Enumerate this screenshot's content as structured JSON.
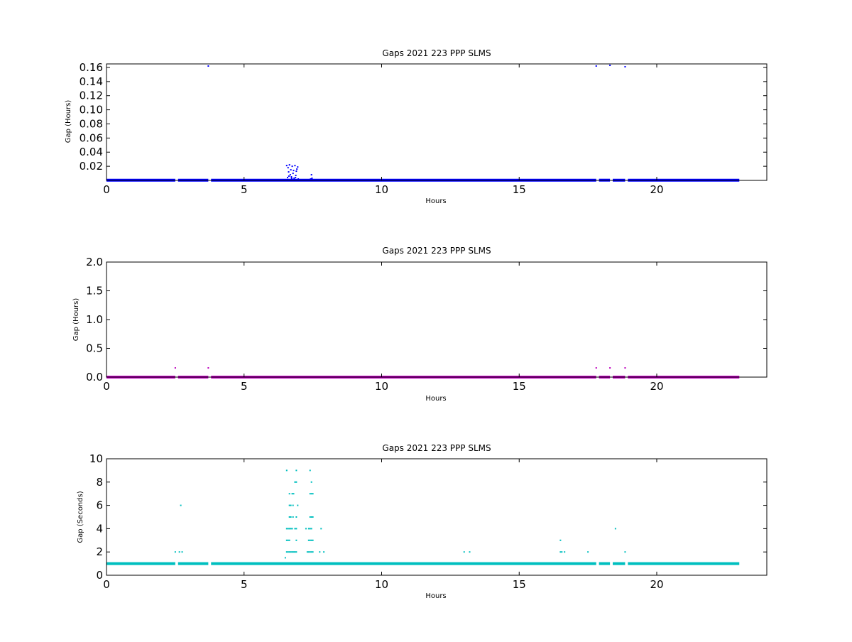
{
  "chart_data": [
    {
      "type": "scatter",
      "title": "Gaps 2021 223 PPP  SLMS",
      "xlabel": "Hours",
      "ylabel": "Gap (Hours)",
      "xlim": [
        0,
        24
      ],
      "ylim": [
        0,
        0.165
      ],
      "xticks": [
        0,
        5,
        10,
        15,
        20
      ],
      "xtick_labels": [
        "0",
        "5",
        "10",
        "15",
        "20"
      ],
      "yticks": [
        0.02,
        0.04,
        0.06,
        0.08,
        0.1,
        0.12,
        0.14,
        0.16
      ],
      "ytick_labels": [
        "0.02",
        "0.04",
        "0.06",
        "0.08",
        "0.10",
        "0.12",
        "0.14",
        "0.16"
      ],
      "grid": false,
      "color": "#0000ff",
      "baseline": {
        "y": 0.0003,
        "segments": [
          [
            0,
            2.5
          ],
          [
            2.6,
            3.7
          ],
          [
            3.8,
            17.8
          ],
          [
            17.9,
            18.3
          ],
          [
            18.4,
            18.85
          ],
          [
            18.95,
            23.0
          ]
        ]
      },
      "points": [
        [
          3.7,
          0.162
        ],
        [
          17.8,
          0.162
        ],
        [
          18.3,
          0.163
        ],
        [
          18.85,
          0.161
        ],
        [
          6.55,
          0.021
        ],
        [
          6.6,
          0.018
        ],
        [
          6.62,
          0.012
        ],
        [
          6.65,
          0.022
        ],
        [
          6.68,
          0.008
        ],
        [
          6.7,
          0.015
        ],
        [
          6.72,
          0.005
        ],
        [
          6.75,
          0.02
        ],
        [
          6.78,
          0.01
        ],
        [
          6.8,
          0.014
        ],
        [
          6.82,
          0.003
        ],
        [
          6.85,
          0.021
        ],
        [
          6.88,
          0.007
        ],
        [
          6.9,
          0.013
        ],
        [
          6.92,
          0.016
        ],
        [
          6.95,
          0.019
        ],
        [
          6.58,
          0.004
        ],
        [
          6.63,
          0.006
        ],
        [
          6.73,
          0.003
        ],
        [
          6.87,
          0.004
        ],
        [
          6.97,
          0.002
        ],
        [
          7.45,
          0.008
        ],
        [
          7.47,
          0.003
        ],
        [
          7.42,
          0.002
        ]
      ]
    },
    {
      "type": "scatter",
      "title": "Gaps 2021 223 PPP  SLMS",
      "xlabel": "Hours",
      "ylabel": "Gap (Hours)",
      "xlim": [
        0,
        24
      ],
      "ylim": [
        0,
        2.0
      ],
      "xticks": [
        0,
        5,
        10,
        15,
        20
      ],
      "xtick_labels": [
        "0",
        "5",
        "10",
        "15",
        "20"
      ],
      "yticks": [
        0.0,
        0.5,
        1.0,
        1.5,
        2.0
      ],
      "ytick_labels": [
        "0.0",
        "0.5",
        "1.0",
        "1.5",
        "2.0"
      ],
      "grid": false,
      "color": "#bf00bf",
      "baseline": {
        "y": 0.0003,
        "segments": [
          [
            0,
            2.5
          ],
          [
            2.6,
            3.7
          ],
          [
            3.8,
            17.8
          ],
          [
            17.9,
            18.3
          ],
          [
            18.4,
            18.85
          ],
          [
            18.95,
            23.0
          ]
        ]
      },
      "points": [
        [
          2.5,
          0.16
        ],
        [
          3.7,
          0.16
        ],
        [
          17.8,
          0.16
        ],
        [
          18.3,
          0.16
        ],
        [
          18.85,
          0.16
        ]
      ]
    },
    {
      "type": "scatter",
      "title": "Gaps 2021 223 PPP  SLMS",
      "xlabel": "Hours",
      "ylabel": "Gap (Seconds)",
      "xlim": [
        0,
        24
      ],
      "ylim": [
        0,
        10
      ],
      "xticks": [
        0,
        5,
        10,
        15,
        20
      ],
      "xtick_labels": [
        "0",
        "5",
        "10",
        "15",
        "20"
      ],
      "yticks": [
        0,
        2,
        4,
        6,
        8,
        10
      ],
      "ytick_labels": [
        "0",
        "2",
        "4",
        "6",
        "8",
        "10"
      ],
      "grid": false,
      "color": "#00bfbf",
      "baseline": {
        "y": 1,
        "segments": [
          [
            0,
            2.5
          ],
          [
            2.6,
            3.7
          ],
          [
            3.8,
            17.8
          ],
          [
            17.9,
            18.3
          ],
          [
            18.4,
            18.85
          ],
          [
            18.95,
            23.0
          ]
        ]
      },
      "points": [
        [
          2.5,
          2
        ],
        [
          2.65,
          2
        ],
        [
          2.75,
          2
        ],
        [
          2.7,
          6
        ],
        [
          6.55,
          9
        ],
        [
          6.9,
          9
        ],
        [
          7.4,
          9
        ],
        [
          6.85,
          8
        ],
        [
          6.9,
          8
        ],
        [
          7.45,
          8
        ],
        [
          6.65,
          7
        ],
        [
          6.75,
          7
        ],
        [
          6.8,
          7
        ],
        [
          7.4,
          7
        ],
        [
          7.45,
          7
        ],
        [
          7.5,
          7
        ],
        [
          6.65,
          6
        ],
        [
          6.7,
          6
        ],
        [
          6.78,
          6
        ],
        [
          6.95,
          6
        ],
        [
          6.65,
          5
        ],
        [
          6.7,
          5
        ],
        [
          6.78,
          5
        ],
        [
          6.9,
          5
        ],
        [
          7.4,
          5
        ],
        [
          7.45,
          5
        ],
        [
          7.5,
          5
        ],
        [
          6.55,
          4
        ],
        [
          6.6,
          4
        ],
        [
          6.65,
          4
        ],
        [
          6.7,
          4
        ],
        [
          6.75,
          4
        ],
        [
          6.85,
          4
        ],
        [
          6.9,
          4
        ],
        [
          7.25,
          4
        ],
        [
          7.35,
          4
        ],
        [
          7.4,
          4
        ],
        [
          7.45,
          4
        ],
        [
          7.8,
          4
        ],
        [
          6.55,
          3
        ],
        [
          6.6,
          3
        ],
        [
          6.65,
          3
        ],
        [
          6.9,
          3
        ],
        [
          7.35,
          3
        ],
        [
          7.4,
          3
        ],
        [
          7.45,
          3
        ],
        [
          7.5,
          3
        ],
        [
          6.55,
          2
        ],
        [
          6.6,
          2
        ],
        [
          6.65,
          2
        ],
        [
          6.7,
          2
        ],
        [
          6.75,
          2
        ],
        [
          6.8,
          2
        ],
        [
          6.85,
          2
        ],
        [
          6.9,
          2
        ],
        [
          7.3,
          2
        ],
        [
          7.35,
          2
        ],
        [
          7.4,
          2
        ],
        [
          7.45,
          2
        ],
        [
          7.5,
          2
        ],
        [
          7.75,
          2
        ],
        [
          7.9,
          2
        ],
        [
          6.5,
          1.5
        ],
        [
          13.0,
          2
        ],
        [
          13.2,
          2
        ],
        [
          16.5,
          3
        ],
        [
          16.5,
          2
        ],
        [
          16.55,
          2
        ],
        [
          16.65,
          2
        ],
        [
          17.5,
          2
        ],
        [
          18.5,
          4
        ],
        [
          18.85,
          2
        ]
      ]
    }
  ]
}
